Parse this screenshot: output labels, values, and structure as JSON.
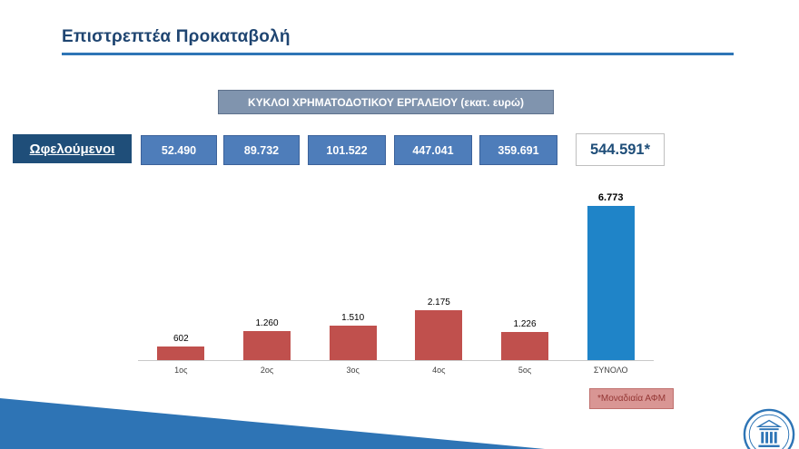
{
  "title": "Επιστρεπτέα Προκαταβολή",
  "header_box": "ΚΥΚΛΟΙ ΧΡΗΜΑΤΟΔΟΤΙΚΟΥ ΕΡΓΑΛΕΙΟΥ (εκατ. ευρώ)",
  "beneficiaries": {
    "label": "Ωφελούμενοι",
    "values": [
      "52.490",
      "89.732",
      "101.522",
      "447.041",
      "359.691"
    ],
    "total": "544.591*"
  },
  "chart_data": {
    "type": "bar",
    "categories": [
      "1ος",
      "2ος",
      "3ος",
      "4ος",
      "5ος",
      "ΣΥΝΟΛΟ"
    ],
    "values": [
      602,
      1260,
      1510,
      2175,
      1226,
      6773
    ],
    "labels": [
      "602",
      "1.260",
      "1.510",
      "2.175",
      "1.226",
      "6.773"
    ],
    "bar_colors": [
      "#C0504D",
      "#C0504D",
      "#C0504D",
      "#C0504D",
      "#C0504D",
      "#1F84C8"
    ],
    "title": "",
    "xlabel": "",
    "ylabel": "",
    "ylim": [
      0,
      6773
    ],
    "grid": false,
    "legend": "none"
  },
  "footnote": "*Μοναδιαία ΑΦΜ",
  "colors": {
    "title_text": "#1F4571",
    "title_rule": "#2E75B6",
    "header_box_bg": "#8094AE",
    "value_box_bg": "#4E7DBA",
    "beneficiaries_box_bg": "#1F4E79",
    "total_text": "#1F4E79",
    "bar_red": "#C0504D",
    "bar_blue": "#1F84C8",
    "footnote_bg": "#D99694",
    "footnote_text": "#943634",
    "footer_band": "#2E74B5"
  },
  "logo_name": "government-ministry-seal"
}
